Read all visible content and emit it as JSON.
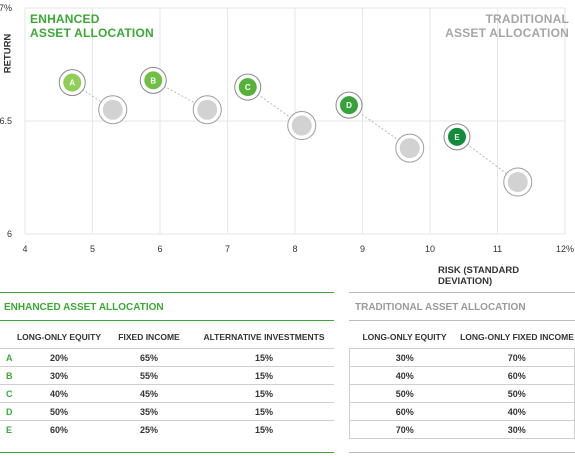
{
  "chart_data": {
    "type": "scatter",
    "title": "",
    "xlabel": "RISK (STANDARD DEVIATION)",
    "ylabel": "RETURN",
    "xlim": [
      4,
      12
    ],
    "ylim": [
      6,
      7
    ],
    "x_ticks": [
      "4",
      "5",
      "6",
      "7",
      "8",
      "9",
      "10",
      "11",
      "12%"
    ],
    "y_ticks": [
      "6",
      "6.5",
      "7%"
    ],
    "grid": true,
    "series": [
      {
        "name": "ENHANCED ASSET ALLOCATION",
        "color": "#4caf3f",
        "points": [
          {
            "label": "A",
            "x": 4.7,
            "y": 6.67
          },
          {
            "label": "B",
            "x": 5.9,
            "y": 6.68
          },
          {
            "label": "C",
            "x": 7.3,
            "y": 6.65
          },
          {
            "label": "D",
            "x": 8.8,
            "y": 6.57
          },
          {
            "label": "E",
            "x": 10.4,
            "y": 6.43
          }
        ]
      },
      {
        "name": "TRADITIONAL ASSET ALLOCATION",
        "color": "#bdbdbd",
        "points": [
          {
            "x": 5.3,
            "y": 6.55
          },
          {
            "x": 6.7,
            "y": 6.55
          },
          {
            "x": 8.1,
            "y": 6.48
          },
          {
            "x": 9.7,
            "y": 6.38
          },
          {
            "x": 11.3,
            "y": 6.23
          }
        ]
      }
    ]
  },
  "legend": {
    "enhanced_line1": "ENHANCED",
    "enhanced_line2": "ASSET ALLOCATION",
    "traditional_line1": "TRADITIONAL",
    "traditional_line2": "ASSET ALLOCATION"
  },
  "tables": {
    "enhanced": {
      "title": "ENHANCED ASSET ALLOCATION",
      "headers": [
        "",
        "LONG-ONLY EQUITY",
        "FIXED INCOME",
        "ALTERNATIVE INVESTMENTS"
      ],
      "rows": [
        [
          "A",
          "20%",
          "65%",
          "15%"
        ],
        [
          "B",
          "30%",
          "55%",
          "15%"
        ],
        [
          "C",
          "40%",
          "45%",
          "15%"
        ],
        [
          "D",
          "50%",
          "35%",
          "15%"
        ],
        [
          "E",
          "60%",
          "25%",
          "15%"
        ]
      ]
    },
    "traditional": {
      "title": "TRADITIONAL ASSET ALLOCATION",
      "headers": [
        "LONG-ONLY EQUITY",
        "LONG-ONLY FIXED INCOME"
      ],
      "rows": [
        [
          "30%",
          "70%"
        ],
        [
          "40%",
          "60%"
        ],
        [
          "50%",
          "50%"
        ],
        [
          "60%",
          "40%"
        ],
        [
          "70%",
          "30%"
        ]
      ]
    }
  }
}
